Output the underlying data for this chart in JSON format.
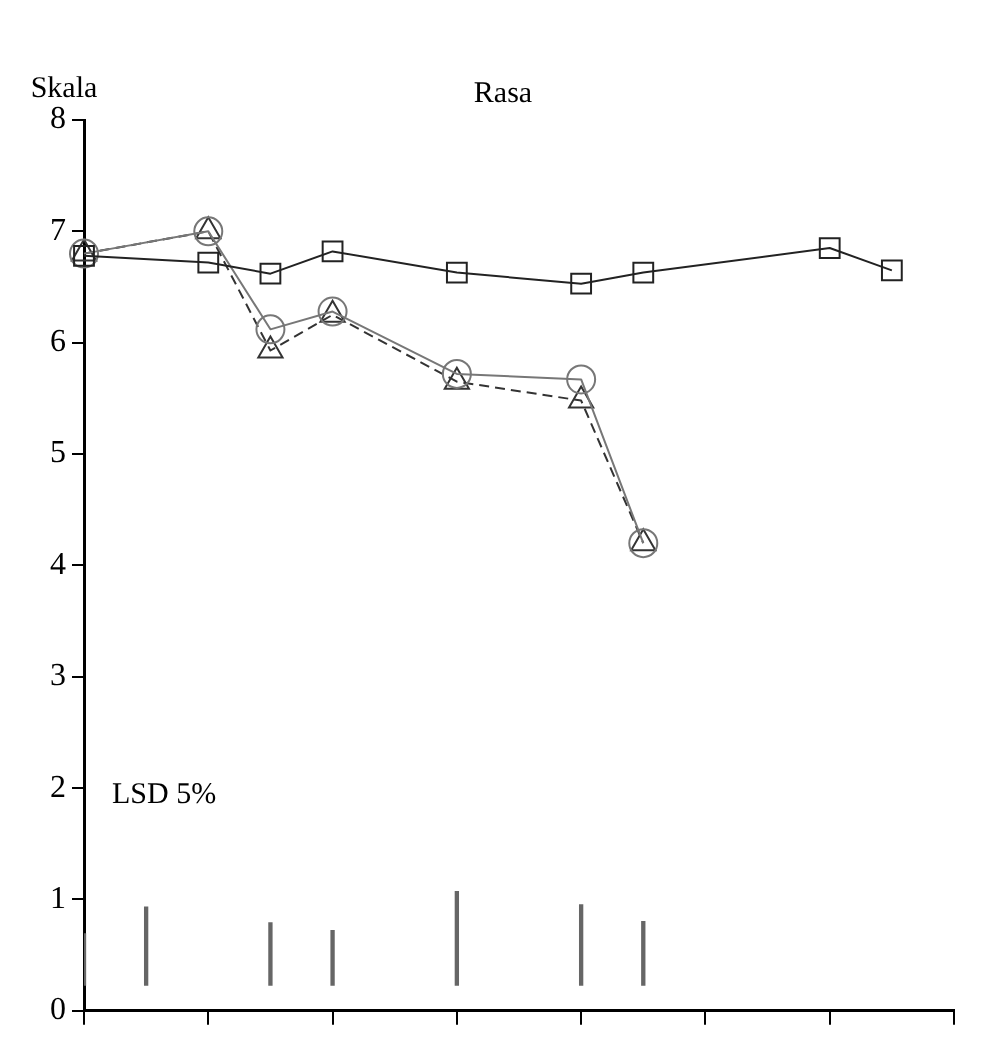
{
  "chart_data": {
    "type": "line",
    "title": "Rasa",
    "ylabel": "Skala",
    "categories": [
      null,
      null,
      null,
      null,
      null,
      null,
      null,
      null,
      null,
      null,
      null,
      null,
      null,
      null,
      null
    ],
    "series": [
      {
        "marker": "square",
        "color": "#222222",
        "line_style": "solid",
        "values": [
          6.78,
          null,
          6.72,
          6.62,
          6.82,
          null,
          6.63,
          null,
          6.53,
          6.63,
          null,
          null,
          6.85,
          6.65,
          null
        ]
      },
      {
        "marker": "circle",
        "color": "#777777",
        "line_style": "solid",
        "values": [
          6.8,
          null,
          7.0,
          6.12,
          6.28,
          null,
          5.72,
          null,
          5.67,
          4.2,
          null,
          null,
          null,
          null,
          null
        ]
      },
      {
        "marker": "triangle",
        "color": "#333333",
        "line_style": "dashed",
        "values": [
          6.8,
          null,
          7.0,
          5.93,
          6.25,
          null,
          5.65,
          null,
          5.48,
          4.2,
          null,
          null,
          null,
          null,
          null
        ]
      },
      {
        "type": "bar",
        "color": "#666666",
        "base": [
          0.23,
          0.23,
          null,
          0.23,
          0.23,
          null,
          0.23,
          null,
          0.23,
          0.23,
          null,
          null,
          null,
          null,
          null
        ],
        "values": [
          0.46,
          0.7,
          null,
          0.56,
          0.49,
          null,
          0.84,
          null,
          0.72,
          0.57,
          null,
          null,
          null,
          null,
          null
        ]
      }
    ],
    "ylim": [
      0,
      8
    ],
    "yticks": [
      0,
      1,
      2,
      3,
      4,
      5,
      6,
      7,
      8
    ],
    "grid": false,
    "legend": false,
    "tick_labels": "y",
    "annotations": [
      "LSD 5%"
    ]
  }
}
